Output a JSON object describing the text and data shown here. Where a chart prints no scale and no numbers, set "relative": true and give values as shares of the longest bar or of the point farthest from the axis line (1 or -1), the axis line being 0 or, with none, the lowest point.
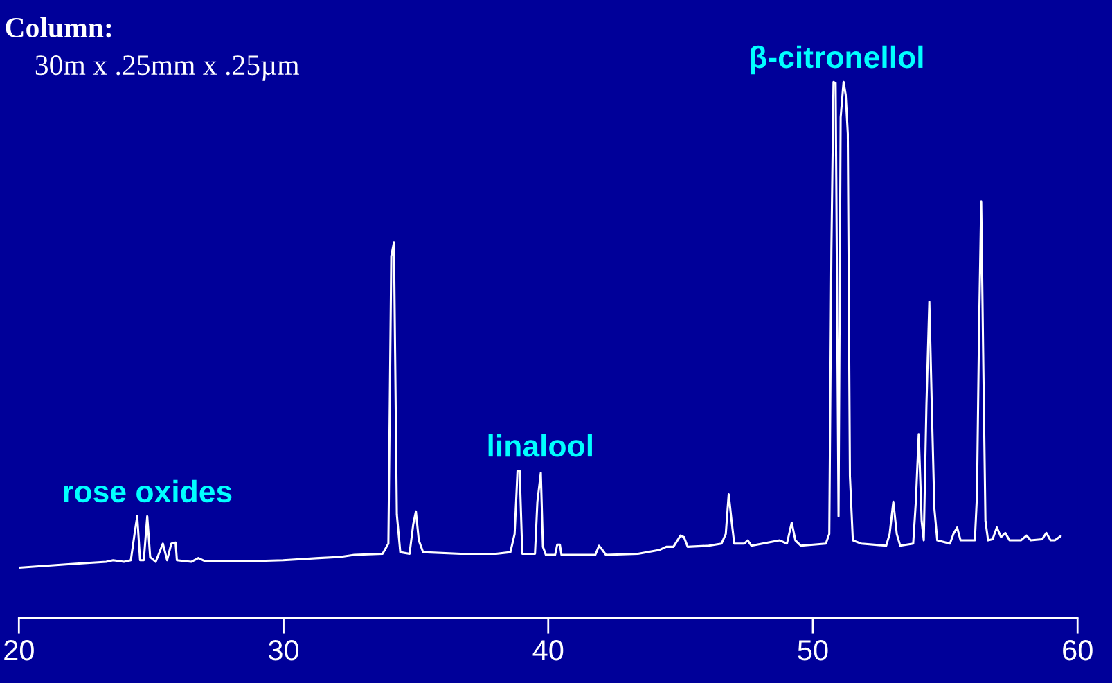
{
  "chart_data": {
    "type": "line",
    "relative": true,
    "title": "Column:",
    "subtitle": "30m x .25mm x .25µm",
    "xlim": [
      20,
      60
    ],
    "xticks": [
      20,
      30,
      40,
      50,
      60
    ],
    "annotations": [
      {
        "text": "rose oxides",
        "x": 24.85,
        "y": 0.19
      },
      {
        "text": "linalool",
        "x": 39.7,
        "y": 0.275
      },
      {
        "text": "β-citronellol",
        "x": 50.9,
        "y": 1.0
      }
    ],
    "series": [
      {
        "color": "#ffffff",
        "x": [
          20.0,
          21.96,
          23.3,
          23.56,
          23.97,
          24.23,
          24.37,
          24.47,
          24.58,
          24.72,
          24.85,
          24.96,
          25.17,
          25.44,
          25.6,
          25.76,
          25.92,
          25.97,
          26.51,
          26.78,
          27.05,
          28.65,
          29.99,
          31.33,
          32.14,
          32.67,
          33.74,
          33.96,
          34.07,
          34.17,
          34.28,
          34.41,
          34.76,
          34.9,
          35.0,
          35.11,
          35.27,
          36.69,
          38.03,
          38.57,
          38.73,
          38.84,
          38.92,
          39.02,
          39.5,
          39.59,
          39.72,
          39.8,
          39.91,
          40.26,
          40.34,
          40.44,
          40.5,
          41.78,
          41.92,
          42.05,
          42.18,
          43.39,
          44.19,
          44.46,
          44.73,
          45.0,
          45.13,
          45.27,
          46.07,
          46.55,
          46.71,
          46.82,
          46.93,
          47.03,
          47.41,
          47.54,
          47.68,
          48.75,
          49.02,
          49.2,
          49.34,
          49.55,
          50.49,
          50.62,
          50.7,
          50.78,
          50.86,
          50.97,
          51.05,
          51.16,
          51.24,
          51.32,
          51.4,
          51.51,
          51.83,
          52.77,
          52.9,
          53.04,
          53.17,
          53.3,
          53.79,
          53.89,
          54.0,
          54.11,
          54.19,
          54.29,
          54.4,
          54.51,
          54.59,
          54.7,
          55.18,
          55.31,
          55.45,
          55.58,
          56.12,
          56.2,
          56.28,
          56.36,
          56.44,
          56.52,
          56.62,
          56.79,
          56.95,
          57.11,
          57.27,
          57.43,
          57.86,
          58.07,
          58.23,
          58.66,
          58.82,
          58.98,
          59.14,
          59.36
        ],
        "values": [
          0.094,
          0.101,
          0.105,
          0.108,
          0.105,
          0.108,
          0.157,
          0.19,
          0.108,
          0.108,
          0.19,
          0.114,
          0.105,
          0.139,
          0.108,
          0.139,
          0.141,
          0.108,
          0.105,
          0.112,
          0.106,
          0.106,
          0.108,
          0.112,
          0.114,
          0.118,
          0.12,
          0.139,
          0.675,
          0.701,
          0.193,
          0.123,
          0.12,
          0.175,
          0.199,
          0.145,
          0.123,
          0.12,
          0.12,
          0.123,
          0.157,
          0.275,
          0.275,
          0.12,
          0.12,
          0.217,
          0.271,
          0.133,
          0.118,
          0.118,
          0.137,
          0.137,
          0.118,
          0.118,
          0.135,
          0.127,
          0.118,
          0.12,
          0.127,
          0.133,
          0.133,
          0.154,
          0.151,
          0.133,
          0.135,
          0.139,
          0.157,
          0.231,
          0.181,
          0.139,
          0.139,
          0.145,
          0.135,
          0.145,
          0.139,
          0.178,
          0.145,
          0.135,
          0.139,
          0.157,
          0.687,
          1.0,
          0.998,
          0.19,
          0.934,
          1.0,
          0.976,
          0.904,
          0.265,
          0.145,
          0.139,
          0.135,
          0.157,
          0.217,
          0.157,
          0.135,
          0.139,
          0.217,
          0.343,
          0.181,
          0.145,
          0.398,
          0.59,
          0.361,
          0.205,
          0.145,
          0.139,
          0.157,
          0.169,
          0.145,
          0.145,
          0.229,
          0.542,
          0.777,
          0.47,
          0.181,
          0.145,
          0.147,
          0.169,
          0.151,
          0.159,
          0.145,
          0.145,
          0.154,
          0.145,
          0.147,
          0.159,
          0.145,
          0.145,
          0.153
        ]
      }
    ]
  }
}
